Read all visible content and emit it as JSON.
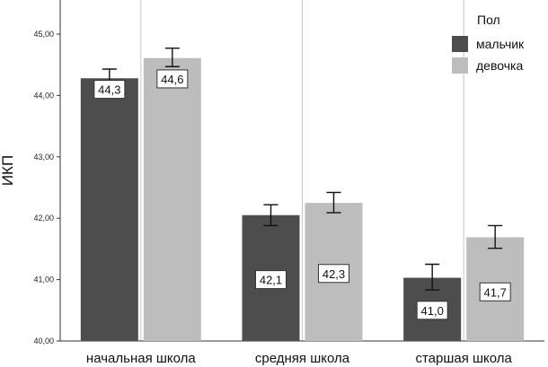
{
  "chart_data": {
    "type": "bar",
    "ylabel": "ИКП",
    "xlabel": "",
    "ylim": [
      40.0,
      45.5
    ],
    "yticks": [
      "40,00",
      "41,00",
      "42,00",
      "43,00",
      "44,00",
      "45,00"
    ],
    "ytick_values": [
      40,
      41,
      42,
      43,
      44,
      45
    ],
    "categories": [
      "начальная школа",
      "средняя школа",
      "старшая школа"
    ],
    "series": [
      {
        "name": "мальчик",
        "color": "#4d4d4d",
        "values": [
          44.28,
          42.05,
          41.03
        ],
        "err_low": [
          44.12,
          41.88,
          40.83
        ],
        "err_high": [
          44.43,
          42.22,
          41.25
        ],
        "labels": [
          "44,3",
          "42,1",
          "41,0"
        ],
        "label_values": [
          44.1,
          41.0,
          40.5
        ]
      },
      {
        "name": "девочка",
        "color": "#bdbdbd",
        "values": [
          44.61,
          42.25,
          41.69
        ],
        "err_low": [
          44.47,
          42.09,
          41.51
        ],
        "err_high": [
          44.77,
          42.42,
          41.88
        ],
        "labels": [
          "44,6",
          "42,3",
          "41,7"
        ],
        "label_values": [
          44.27,
          41.1,
          40.8
        ]
      }
    ],
    "legend": {
      "title": "Пол",
      "position": "top-right"
    },
    "grid": {
      "x": true,
      "y": false
    }
  }
}
